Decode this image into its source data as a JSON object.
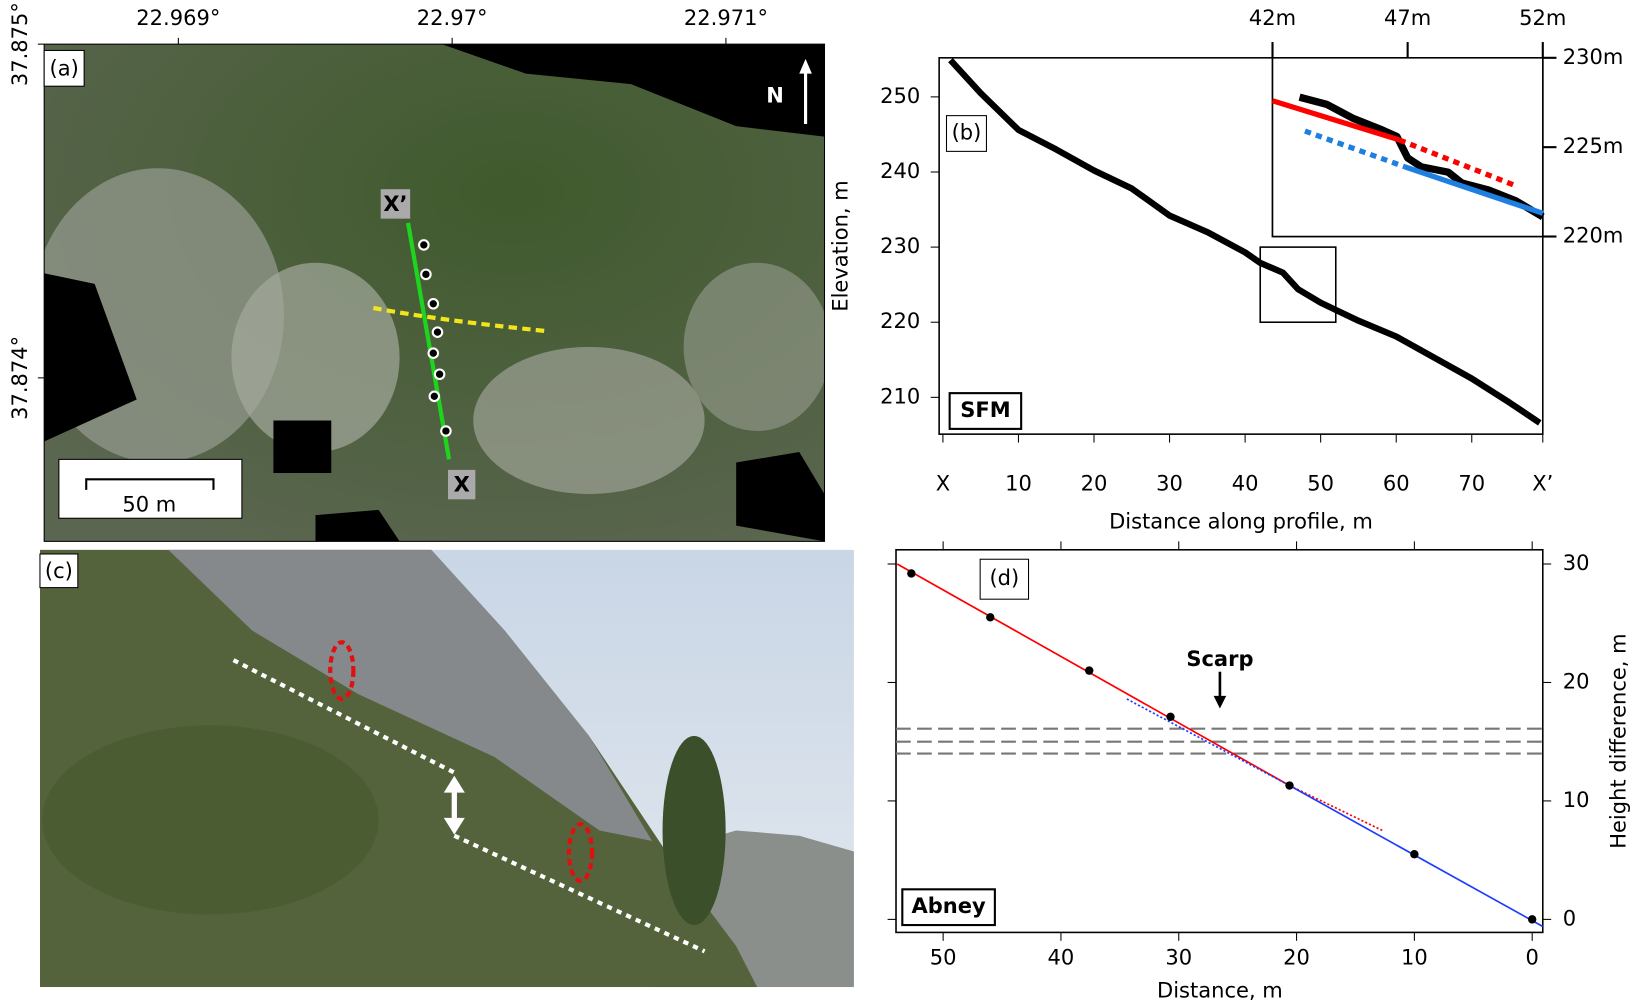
{
  "panel_a": {
    "label": "(a)",
    "xlim": [
      22.96851,
      22.97136
    ],
    "xticks": [
      {
        "value": 22.969,
        "label": "22.969°"
      },
      {
        "value": 22.97,
        "label": "22.97°"
      },
      {
        "value": 22.971,
        "label": "22.971°"
      }
    ],
    "ylim": [
      37.87351,
      37.875
    ],
    "yticks": [
      {
        "value": 37.875,
        "label": "37.875°"
      },
      {
        "value": 37.874,
        "label": "37.874°"
      }
    ],
    "north": "N",
    "profile_start": "X",
    "profile_end": "X’",
    "scale_bar": "50 m"
  },
  "panel_c": {
    "label": "(c)"
  },
  "chart_data": [
    {
      "type": "line",
      "label": "(b)",
      "method": "SFM",
      "x_label": "Distance along profile, m",
      "y_label": "Elevation, m",
      "xlim": [
        -0.5,
        79.4
      ],
      "xticks": [
        {
          "value": 0,
          "label": "X"
        },
        10,
        20,
        30,
        40,
        50,
        60,
        70,
        {
          "value": 79.4,
          "label": "X’"
        }
      ],
      "ylim": [
        205.1,
        255.2
      ],
      "yticks": [
        210,
        220,
        230,
        240,
        250
      ],
      "x": [
        1,
        5,
        10,
        15,
        20,
        25,
        30,
        35,
        40,
        42,
        45,
        47,
        50,
        55,
        60,
        65,
        70,
        75,
        79
      ],
      "series": [
        {
          "color": "#000000",
          "values": [
            254.9,
            250.5,
            245.6,
            243.0,
            240.2,
            237.8,
            234.2,
            232.0,
            229.3,
            227.9,
            226.6,
            224.4,
            222.6,
            220.2,
            218.1,
            215.3,
            212.5,
            209.3,
            206.6
          ]
        }
      ],
      "inset": {
        "xlim": [
          42,
          52
        ],
        "xticks": [
          {
            "value": 42,
            "label": "42m"
          },
          {
            "value": 47,
            "label": "47m"
          },
          {
            "value": 52,
            "label": "52m"
          }
        ],
        "ylim": [
          220,
          230
        ],
        "yticks": [
          {
            "value": 220,
            "label": "220m"
          },
          {
            "value": 225,
            "label": "225m"
          },
          {
            "value": 230,
            "label": "230m"
          }
        ],
        "series": [
          {
            "color": "#000000",
            "x": [
              43,
              44,
              45,
              46,
              46.6,
              47,
              47.5,
              48.5,
              49,
              50,
              51,
              52
            ],
            "values": [
              227.8,
              227.4,
              226.6,
              226.0,
              225.6,
              224.4,
              223.9,
              223.6,
              223.0,
              222.6,
              222.0,
              221.1
            ]
          },
          {
            "color": "#ff0000",
            "x": [
              42,
              46.7
            ],
            "values": [
              227.6,
              225.4
            ]
          },
          {
            "color": "#ff0000",
            "dashed": true,
            "x": [
              46.7,
              50.9
            ],
            "values": [
              225.4,
              222.9
            ]
          },
          {
            "color": "#1e7fe0",
            "dashed": true,
            "x": [
              43.2,
              46.9
            ],
            "values": [
              225.9,
              223.9
            ]
          },
          {
            "color": "#1e7fe0",
            "x": [
              46.9,
              52
            ],
            "values": [
              223.9,
              221.3
            ]
          }
        ]
      }
    },
    {
      "type": "scatter",
      "label": "(d)",
      "method": "Abney",
      "annotation": "Scarp",
      "x_label": "Distance, m",
      "y_label": "Height difference, m",
      "xlim": [
        54,
        -0.9
      ],
      "xticks": [
        50,
        40,
        30,
        20,
        10,
        0
      ],
      "ylim": [
        -1.1,
        31.2
      ],
      "yticks": [
        0,
        10,
        20,
        30
      ],
      "x": [
        52.7,
        46,
        37.6,
        30.7,
        20.6,
        10,
        0
      ],
      "series": [
        {
          "color": "#000000",
          "values": [
            29.2,
            25.5,
            21.0,
            17.1,
            11.3,
            5.5,
            0
          ]
        }
      ],
      "fits": [
        {
          "color": "#ff0000",
          "x": [
            53.9,
            20.6
          ],
          "values": [
            30,
            11.3
          ]
        },
        {
          "color": "#ff0000",
          "dashed": true,
          "x": [
            20.6,
            12.7
          ],
          "values": [
            11.3,
            7.5
          ]
        },
        {
          "color": "#1e3cff",
          "dashed": true,
          "x": [
            34.4,
            20.6
          ],
          "values": [
            18.6,
            11.3
          ]
        },
        {
          "color": "#1e3cff",
          "x": [
            20.6,
            -0.9
          ],
          "values": [
            11.3,
            -0.6
          ]
        }
      ],
      "hlines": [
        16.1,
        15.0,
        14.0
      ]
    }
  ]
}
